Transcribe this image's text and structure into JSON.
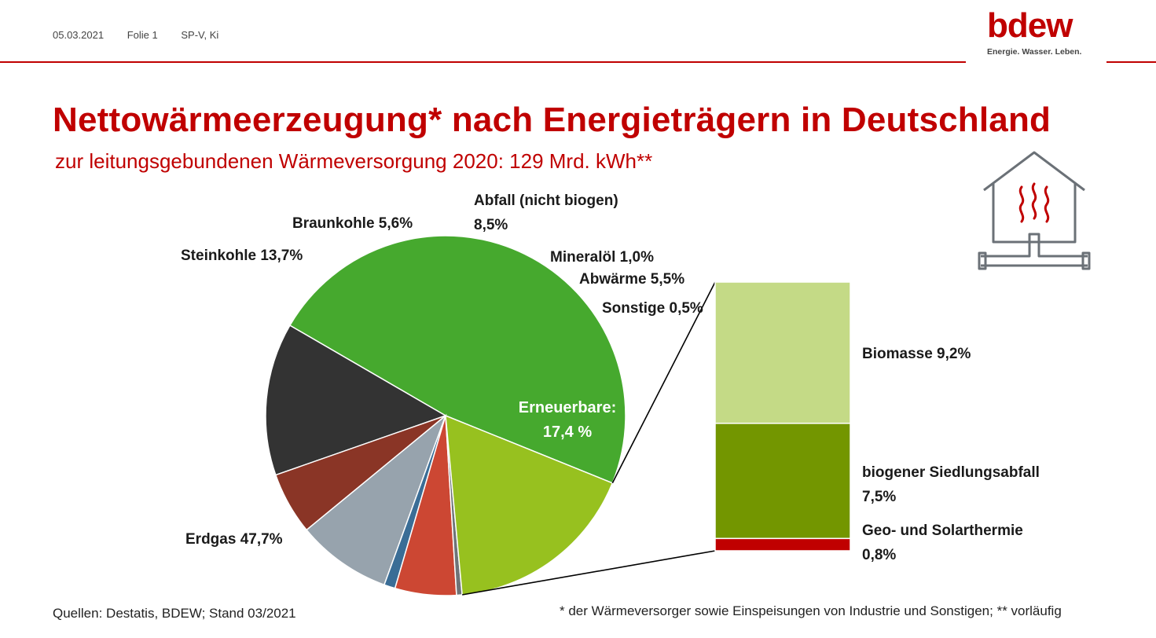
{
  "header": {
    "date": "05.03.2021",
    "slide": "Folie 1",
    "author": "SP-V, Ki",
    "logo_word": "bdew",
    "logo_claim": "Energie. Wasser. Leben."
  },
  "house_icon": "house-heating-icon",
  "chart_data": {
    "type": "pie",
    "title": "Nettowärmeerzeugung* nach Energieträgern in Deutschland",
    "subtitle": "zur leitungsgebundenen Wärmeversorgung 2020: 129 Mrd. kWh**",
    "slices": [
      {
        "name": "Erdgas",
        "value": 47.7,
        "label": "Erdgas 47,7%",
        "color": "#46a92e"
      },
      {
        "name": "Steinkohle",
        "value": 13.7,
        "label": "Steinkohle 13,7%",
        "color": "#333333"
      },
      {
        "name": "Braunkohle",
        "value": 5.6,
        "label": "Braunkohle 5,6%",
        "color": "#8a3526"
      },
      {
        "name": "Abfall (nicht biogen)",
        "value": 8.5,
        "label_lines": [
          "Abfall (nicht biogen)",
          "8,5%"
        ],
        "color": "#97a3ad"
      },
      {
        "name": "Mineralöl",
        "value": 1.0,
        "label": "Mineralöl 1,0%",
        "color": "#3a6d96"
      },
      {
        "name": "Abwärme",
        "value": 5.5,
        "label": "Abwärme 5,5%",
        "color": "#cc4733"
      },
      {
        "name": "Sonstige",
        "value": 0.5,
        "label": "Sonstige 0,5%",
        "color": "#6e7478"
      },
      {
        "name": "Erneuerbare",
        "value": 17.4,
        "label_lines": [
          "Erneuerbare:",
          "17,4 %"
        ],
        "color": "#97c11f"
      }
    ],
    "breakdown": {
      "of": "Erneuerbare",
      "segments": [
        {
          "name": "Biomasse",
          "value": 9.2,
          "label_lines": [
            "Biomasse 9,2%"
          ],
          "color": "#c4da86"
        },
        {
          "name": "biogener Siedlungsabfall",
          "value": 7.5,
          "label_lines": [
            "biogener Siedlungsabfall",
            "7,5%"
          ],
          "color": "#739600"
        },
        {
          "name": "Geo- und Solarthermie",
          "value": 0.8,
          "label_lines": [
            "Geo- und Solarthermie",
            "0,8%"
          ],
          "color": "#c00000"
        }
      ]
    }
  },
  "footer": {
    "source": "Quellen: Destatis, BDEW; Stand 03/2021",
    "note": "* der Wärmeversorger sowie Einspeisungen von Industrie und Sonstigen; ** vorläufig"
  }
}
